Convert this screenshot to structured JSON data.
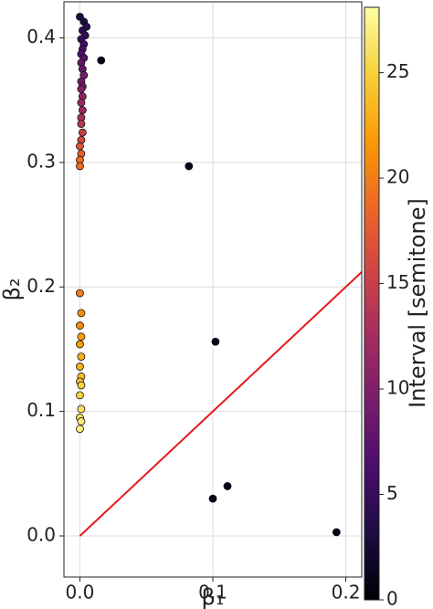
{
  "chart_data": {
    "type": "scatter",
    "x_label": "β₁",
    "y_label": "β₂",
    "colorbar_label": "Interval [semitone]",
    "colormap": "inferno",
    "clim": [
      0,
      28.1
    ],
    "cticks": [
      0,
      5,
      10,
      15,
      20,
      25
    ],
    "xlim": [
      -0.012,
      0.212
    ],
    "ylim": [
      -0.033,
      0.429
    ],
    "xticks": [
      {
        "value": 0,
        "label": "0.0"
      },
      0.1,
      0.2
    ],
    "yticks": [
      {
        "value": 0,
        "label": "0.0"
      },
      0.1,
      0.2,
      0.3,
      0.4
    ],
    "grid": true,
    "series": [
      {
        "x": [
          0.0,
          0.003,
          0.005,
          0.002,
          0.004,
          0.001,
          0.003,
          0.002,
          0.001,
          0.003,
          0.001,
          0.002,
          0.003,
          0.001,
          0.002,
          0.001,
          0.002,
          0.001,
          0.002,
          0.001,
          0.001,
          0.002,
          0.001,
          0.0,
          0.001,
          0.0,
          0.0,
          0.0,
          0.001,
          0.0,
          0.001,
          0.0,
          0.001,
          0.0,
          0.001,
          0.0,
          0.001,
          0.0,
          0.001,
          0.0,
          0.001,
          0.0,
          0.016,
          0.082,
          0.102,
          0.1,
          0.111,
          0.193
        ],
        "y": [
          0.417,
          0.413,
          0.409,
          0.406,
          0.402,
          0.399,
          0.395,
          0.391,
          0.387,
          0.384,
          0.38,
          0.375,
          0.37,
          0.365,
          0.361,
          0.359,
          0.353,
          0.348,
          0.342,
          0.336,
          0.331,
          0.324,
          0.318,
          0.313,
          0.307,
          0.302,
          0.297,
          0.195,
          0.179,
          0.169,
          0.16,
          0.154,
          0.144,
          0.136,
          0.128,
          0.124,
          0.121,
          0.113,
          0.102,
          0.095,
          0.092,
          0.086,
          0.382,
          0.297,
          0.156,
          0.03,
          0.04,
          0.003
        ],
        "c": [
          3,
          3,
          4,
          4,
          5,
          5,
          6,
          6,
          7,
          7,
          8,
          8,
          9,
          9,
          10,
          10,
          11,
          12,
          12,
          13,
          14,
          15,
          16,
          17,
          18,
          19,
          19,
          20,
          21,
          21,
          22,
          22,
          23,
          23,
          24,
          24,
          25,
          25,
          26,
          26,
          27,
          27,
          1,
          1,
          1,
          1,
          1,
          1
        ]
      }
    ],
    "reference_line": {
      "x": [
        0,
        0.212
      ],
      "y": [
        0,
        0.212
      ],
      "color": "#e31a1c"
    }
  }
}
